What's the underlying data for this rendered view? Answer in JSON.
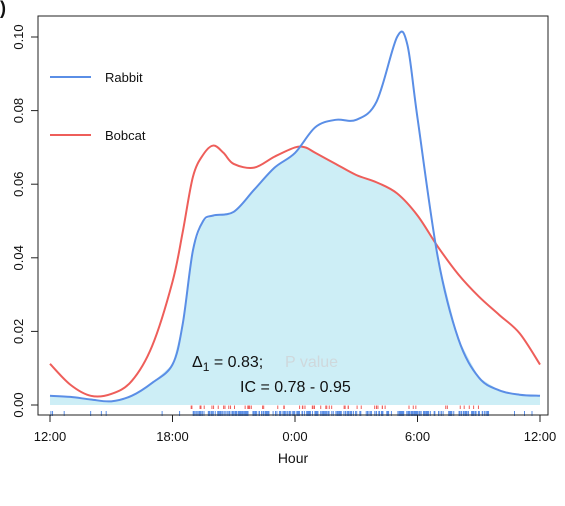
{
  "chart_data": {
    "type": "area",
    "panel_label": ")",
    "xlabel": "Hour",
    "ylabel": "",
    "xlim": [
      0,
      24
    ],
    "ylim": [
      0,
      0.1
    ],
    "x_ticks": [
      {
        "value": 0,
        "label": "12:00"
      },
      {
        "value": 6,
        "label": "18:00"
      },
      {
        "value": 12,
        "label": "0:00"
      },
      {
        "value": 18,
        "label": "6:00"
      },
      {
        "value": 24,
        "label": "12:00"
      }
    ],
    "y_ticks": [
      {
        "value": 0,
        "label": "0.00"
      },
      {
        "value": 0.02,
        "label": "0.02"
      },
      {
        "value": 0.04,
        "label": "0.04"
      },
      {
        "value": 0.06,
        "label": "0.06"
      },
      {
        "value": 0.08,
        "label": "0.08"
      },
      {
        "value": 0.1,
        "label": "0.10"
      }
    ],
    "legend": {
      "placement": "top-left",
      "entries": [
        {
          "label": "Rabbit",
          "color": "#5a8ee6"
        },
        {
          "label": "Bobcat",
          "color": "#ee5e5a"
        }
      ]
    },
    "overlap_fill_color": "#cdeef6",
    "series": [
      {
        "name": "Rabbit",
        "color": "#5a8ee6",
        "x": [
          0,
          1,
          2,
          3,
          4,
          5,
          6,
          6.5,
          7,
          7.5,
          8,
          9,
          10,
          11,
          12,
          13,
          14,
          15,
          16,
          17,
          17.5,
          18,
          19,
          20,
          21,
          22,
          23,
          24
        ],
        "y": [
          0.0025,
          0.0022,
          0.0015,
          0.001,
          0.0025,
          0.006,
          0.011,
          0.022,
          0.042,
          0.05,
          0.0515,
          0.0525,
          0.0585,
          0.0645,
          0.0685,
          0.0755,
          0.0775,
          0.0775,
          0.0825,
          0.1,
          0.098,
          0.078,
          0.04,
          0.018,
          0.0075,
          0.004,
          0.0028,
          0.0025
        ]
      },
      {
        "name": "Bobcat",
        "color": "#ee5e5a",
        "x": [
          0,
          1,
          2,
          3,
          4,
          5,
          6,
          6.5,
          7,
          7.5,
          8,
          8.5,
          9,
          10,
          11,
          12,
          12.5,
          13,
          14,
          15,
          16,
          17,
          18,
          19,
          20,
          21,
          22,
          23,
          24
        ],
        "y": [
          0.0112,
          0.0055,
          0.0025,
          0.003,
          0.0065,
          0.016,
          0.0335,
          0.047,
          0.062,
          0.068,
          0.0705,
          0.0685,
          0.0655,
          0.0645,
          0.0675,
          0.07,
          0.07,
          0.0685,
          0.0655,
          0.0625,
          0.0605,
          0.0575,
          0.0515,
          0.043,
          0.0355,
          0.0295,
          0.0245,
          0.0195,
          0.011
        ]
      }
    ],
    "annotations": {
      "overlap_label": "Δ",
      "overlap_subscript": "1",
      "overlap_value": " = 0.83;",
      "faint_text": "P value",
      "ci_text": "IC = 0.78 - 0.95"
    },
    "rug": {
      "bobcat_color": "#ee5e5a",
      "rabbit_color": "#5a8ee6"
    }
  }
}
